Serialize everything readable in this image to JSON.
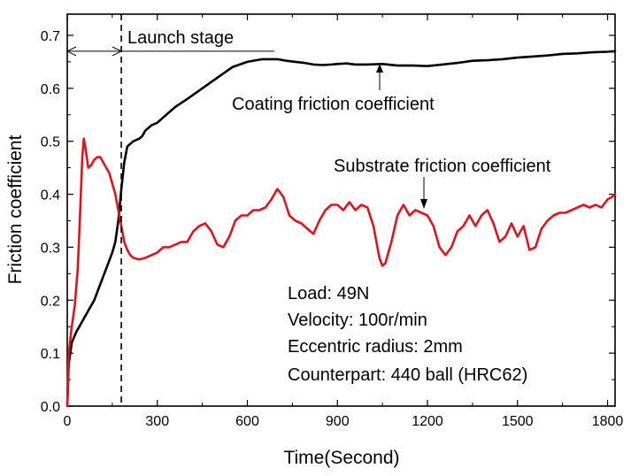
{
  "chart_data": {
    "type": "line",
    "xlabel": "Time(Second)",
    "ylabel": "Friction coefficient",
    "xlim": [
      0,
      1825
    ],
    "ylim": [
      0,
      0.74
    ],
    "xticks": [
      0,
      300,
      600,
      900,
      1200,
      1500,
      1800
    ],
    "yticks": [
      0.0,
      0.1,
      0.2,
      0.3,
      0.4,
      0.5,
      0.6,
      0.7
    ],
    "xtick_labels": [
      "0",
      "300",
      "600",
      "900",
      "1200",
      "1500",
      "1800"
    ],
    "ytick_labels": [
      "0.0",
      "0.1",
      "0.2",
      "0.3",
      "0.4",
      "0.5",
      "0.6",
      "0.7"
    ],
    "grid": false,
    "series": [
      {
        "name": "Coating friction coefficient",
        "color": "#000000",
        "x": [
          0,
          5,
          15,
          30,
          50,
          70,
          90,
          110,
          130,
          150,
          160,
          170,
          180,
          190,
          200,
          220,
          240,
          250,
          260,
          280,
          300,
          330,
          360,
          400,
          450,
          500,
          550,
          600,
          650,
          700,
          730,
          760,
          790,
          820,
          850,
          880,
          900,
          930,
          960,
          1000,
          1050,
          1100,
          1150,
          1200,
          1250,
          1300,
          1350,
          1400,
          1450,
          1500,
          1550,
          1600,
          1650,
          1700,
          1750,
          1800,
          1825
        ],
        "values": [
          0.0,
          0.08,
          0.12,
          0.14,
          0.16,
          0.18,
          0.2,
          0.23,
          0.26,
          0.29,
          0.31,
          0.35,
          0.41,
          0.46,
          0.49,
          0.5,
          0.505,
          0.51,
          0.52,
          0.53,
          0.535,
          0.55,
          0.565,
          0.58,
          0.6,
          0.62,
          0.64,
          0.65,
          0.655,
          0.655,
          0.652,
          0.65,
          0.648,
          0.645,
          0.644,
          0.645,
          0.646,
          0.647,
          0.645,
          0.645,
          0.646,
          0.643,
          0.643,
          0.642,
          0.645,
          0.648,
          0.652,
          0.653,
          0.655,
          0.658,
          0.66,
          0.662,
          0.665,
          0.666,
          0.668,
          0.669,
          0.67
        ]
      },
      {
        "name": "Substrate friction coefficient",
        "color": "#e0141e",
        "x": [
          0,
          5,
          15,
          25,
          35,
          42,
          50,
          55,
          60,
          70,
          80,
          90,
          100,
          110,
          120,
          130,
          140,
          150,
          160,
          170,
          180,
          190,
          200,
          210,
          220,
          240,
          260,
          280,
          300,
          320,
          340,
          360,
          380,
          400,
          420,
          440,
          460,
          480,
          500,
          520,
          540,
          560,
          580,
          600,
          620,
          640,
          660,
          680,
          700,
          720,
          740,
          760,
          780,
          800,
          820,
          840,
          860,
          880,
          900,
          920,
          940,
          960,
          980,
          1000,
          1020,
          1040,
          1050,
          1060,
          1080,
          1100,
          1120,
          1140,
          1160,
          1180,
          1200,
          1220,
          1240,
          1260,
          1280,
          1300,
          1320,
          1340,
          1360,
          1380,
          1400,
          1420,
          1440,
          1460,
          1480,
          1500,
          1520,
          1540,
          1560,
          1580,
          1600,
          1620,
          1640,
          1660,
          1680,
          1700,
          1720,
          1740,
          1760,
          1780,
          1800,
          1815,
          1825
        ],
        "values": [
          0.0,
          0.1,
          0.15,
          0.19,
          0.26,
          0.35,
          0.47,
          0.505,
          0.49,
          0.45,
          0.455,
          0.465,
          0.47,
          0.47,
          0.46,
          0.45,
          0.44,
          0.42,
          0.4,
          0.37,
          0.34,
          0.31,
          0.295,
          0.285,
          0.28,
          0.277,
          0.28,
          0.285,
          0.29,
          0.3,
          0.3,
          0.305,
          0.31,
          0.31,
          0.33,
          0.34,
          0.345,
          0.33,
          0.305,
          0.3,
          0.32,
          0.35,
          0.36,
          0.36,
          0.37,
          0.37,
          0.375,
          0.39,
          0.41,
          0.395,
          0.36,
          0.35,
          0.345,
          0.335,
          0.325,
          0.35,
          0.37,
          0.38,
          0.38,
          0.37,
          0.385,
          0.37,
          0.38,
          0.375,
          0.34,
          0.28,
          0.265,
          0.27,
          0.31,
          0.36,
          0.38,
          0.36,
          0.37,
          0.365,
          0.36,
          0.34,
          0.3,
          0.285,
          0.3,
          0.33,
          0.34,
          0.36,
          0.34,
          0.36,
          0.37,
          0.345,
          0.31,
          0.32,
          0.345,
          0.32,
          0.34,
          0.295,
          0.3,
          0.335,
          0.35,
          0.36,
          0.365,
          0.365,
          0.37,
          0.375,
          0.38,
          0.375,
          0.38,
          0.375,
          0.39,
          0.395,
          0.4
        ]
      }
    ],
    "annotations": {
      "launch_stage": "Launch stage",
      "coating_label": "Coating friction coefficient",
      "substrate_label": "Substrate friction coefficient",
      "launch_end_x": 180
    },
    "info_lines": [
      "Load: 49N",
      "Velocity: 100r/min",
      "Eccentric radius: 2mm",
      "Counterpart: 440 ball (HRC62)"
    ]
  }
}
